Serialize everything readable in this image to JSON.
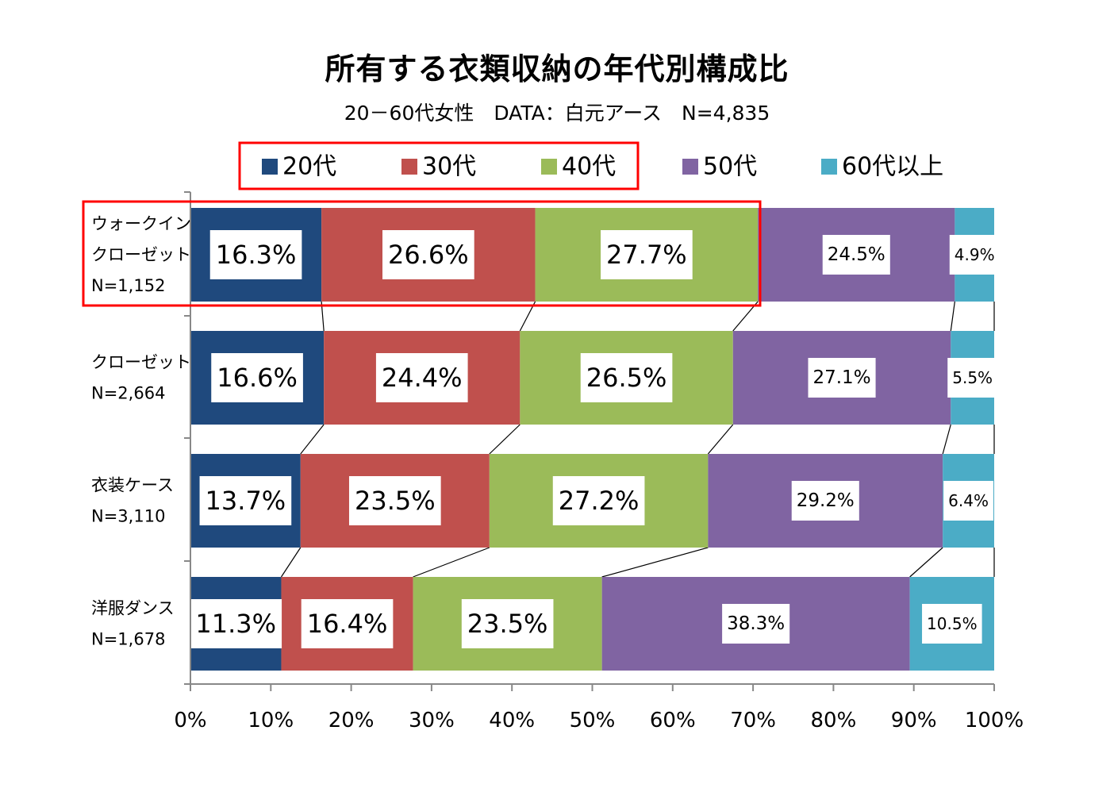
{
  "chart_data": {
    "type": "bar",
    "orientation": "horizontal",
    "stacked": "percent",
    "title": "所有する衣類収納の年代別構成比",
    "subtitle": "20－60代女性　DATA：白元アース　N=4,835",
    "categories": [
      {
        "name": "ウォークイン",
        "name2": "クローゼット",
        "n": "N=1,152"
      },
      {
        "name": "クローゼット",
        "name2": "",
        "n": "N=2,664"
      },
      {
        "name": "衣装ケース",
        "name2": "",
        "n": "N=3,110"
      },
      {
        "name": "洋服ダンス",
        "name2": "",
        "n": "N=1,678"
      }
    ],
    "series": [
      {
        "name": "20代",
        "color": "#1F497D",
        "values": [
          16.3,
          16.6,
          13.7,
          11.3
        ],
        "labels": [
          "16.3%",
          "16.6%",
          "13.7%",
          "11.3%"
        ]
      },
      {
        "name": "30代",
        "color": "#C0504D",
        "values": [
          26.6,
          24.4,
          23.5,
          16.4
        ],
        "labels": [
          "26.6%",
          "24.4%",
          "23.5%",
          "16.4%"
        ]
      },
      {
        "name": "40代",
        "color": "#9BBB59",
        "values": [
          27.7,
          26.5,
          27.2,
          23.5
        ],
        "labels": [
          "27.7%",
          "26.5%",
          "27.2%",
          "23.5%"
        ]
      },
      {
        "name": "50代",
        "color": "#8064A2",
        "values": [
          24.5,
          27.1,
          29.2,
          38.3
        ],
        "labels": [
          "24.5%",
          "27.1%",
          "29.2%",
          "38.3%"
        ]
      },
      {
        "name": "60代以上",
        "color": "#4BACC6",
        "values": [
          4.9,
          5.5,
          6.4,
          10.5
        ],
        "labels": [
          "4.9%",
          "5.5%",
          "6.4%",
          "10.5%"
        ]
      }
    ],
    "xlim": [
      0,
      100
    ],
    "xticks": [
      "0%",
      "10%",
      "20%",
      "30%",
      "40%",
      "50%",
      "60%",
      "70%",
      "80%",
      "90%",
      "100%"
    ],
    "legend_position": "top",
    "grid": false,
    "series_lines": true,
    "highlight_color": "#FF0000",
    "highlights": [
      "legend: 20代, 30代, 40代",
      "row: ウォークイン クローゼット (20代–40代)"
    ]
  }
}
